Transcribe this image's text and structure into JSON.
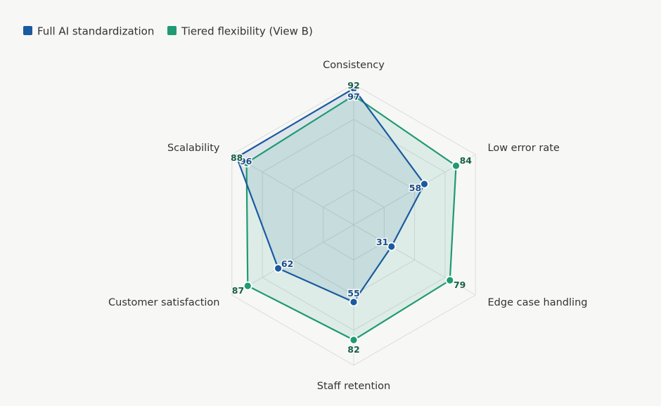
{
  "chart_data": {
    "type": "radar",
    "title": "",
    "axes": [
      "Consistency",
      "Low error rate",
      "Edge case handling",
      "Staff retention",
      "Customer satisfaction",
      "Scalability"
    ],
    "range": [
      0,
      100
    ],
    "grid": true,
    "legend_position": "top-left",
    "series": [
      {
        "name": "Full AI standardization",
        "values": [
          97,
          58,
          31,
          55,
          62,
          96
        ],
        "value_labels": [
          "97",
          "58",
          "31",
          "55",
          "62",
          "96"
        ],
        "color": "#1a5aa0",
        "fill": "rgba(26,90,160,0.12)"
      },
      {
        "name": "Tiered flexibility (View B)",
        "values": [
          92,
          84,
          79,
          82,
          87,
          88
        ],
        "value_labels": [
          "92",
          "84",
          "79",
          "82",
          "87",
          "88"
        ],
        "color": "#1f9a72",
        "fill": "rgba(31,154,114,0.11)"
      }
    ]
  }
}
